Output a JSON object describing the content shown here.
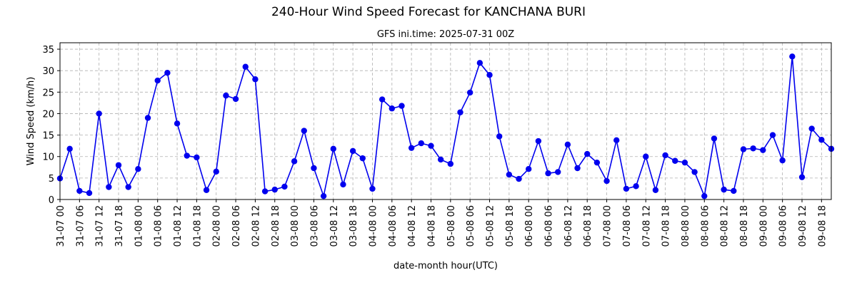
{
  "chart_data": {
    "type": "line",
    "title": "240-Hour Wind Speed Forecast for KANCHANA BURI",
    "subtitle": "GFS ini.time: 2025-07-31 00Z",
    "xlabel": "date-month hour(UTC)",
    "ylabel": "Wind Speed (km/h)",
    "ylim": [
      0,
      36.5
    ],
    "yticks": [
      0,
      5,
      10,
      15,
      20,
      25,
      30,
      35
    ],
    "grid": true,
    "line_color": "#0000ee",
    "xticks": [
      "31-07 00",
      "31-07 06",
      "31-07 12",
      "31-07 18",
      "01-08 00",
      "01-08 06",
      "01-08 12",
      "01-08 18",
      "02-08 00",
      "02-08 06",
      "02-08 12",
      "02-08 18",
      "03-08 00",
      "03-08 06",
      "03-08 12",
      "03-08 18",
      "04-08 00",
      "04-08 06",
      "04-08 12",
      "04-08 18",
      "05-08 00",
      "05-08 06",
      "05-08 12",
      "05-08 18",
      "06-08 00",
      "06-08 06",
      "06-08 12",
      "06-08 18",
      "07-08 00",
      "07-08 06",
      "07-08 12",
      "07-08 18",
      "08-08 00",
      "08-08 06",
      "08-08 12",
      "08-08 18",
      "09-08 00",
      "09-08 06",
      "09-08 12",
      "09-08 18"
    ],
    "x_hours_step": 3,
    "values": [
      4.9,
      11.8,
      2.0,
      1.5,
      20.0,
      2.9,
      8.0,
      2.9,
      7.1,
      19.0,
      27.7,
      29.5,
      17.7,
      10.2,
      9.8,
      2.2,
      6.5,
      24.2,
      23.4,
      30.9,
      28.0,
      1.9,
      2.3,
      3.0,
      8.9,
      16.0,
      7.3,
      0.8,
      11.8,
      3.5,
      11.3,
      9.6,
      2.5,
      23.3,
      21.2,
      21.8,
      12.0,
      13.1,
      12.5,
      9.3,
      8.3,
      20.3,
      24.9,
      31.8,
      29.0,
      14.7,
      5.8,
      4.8,
      7.1,
      13.6,
      6.1,
      6.4,
      12.8,
      7.3,
      10.6,
      8.6,
      4.3,
      13.8,
      2.5,
      3.1,
      10.0,
      2.2,
      10.3,
      9.0,
      8.6,
      6.4,
      0.8,
      14.2,
      2.3,
      2.0,
      11.7,
      11.9,
      11.5,
      15.0,
      9.1,
      33.3,
      5.2,
      16.5,
      13.9,
      11.8
    ]
  }
}
